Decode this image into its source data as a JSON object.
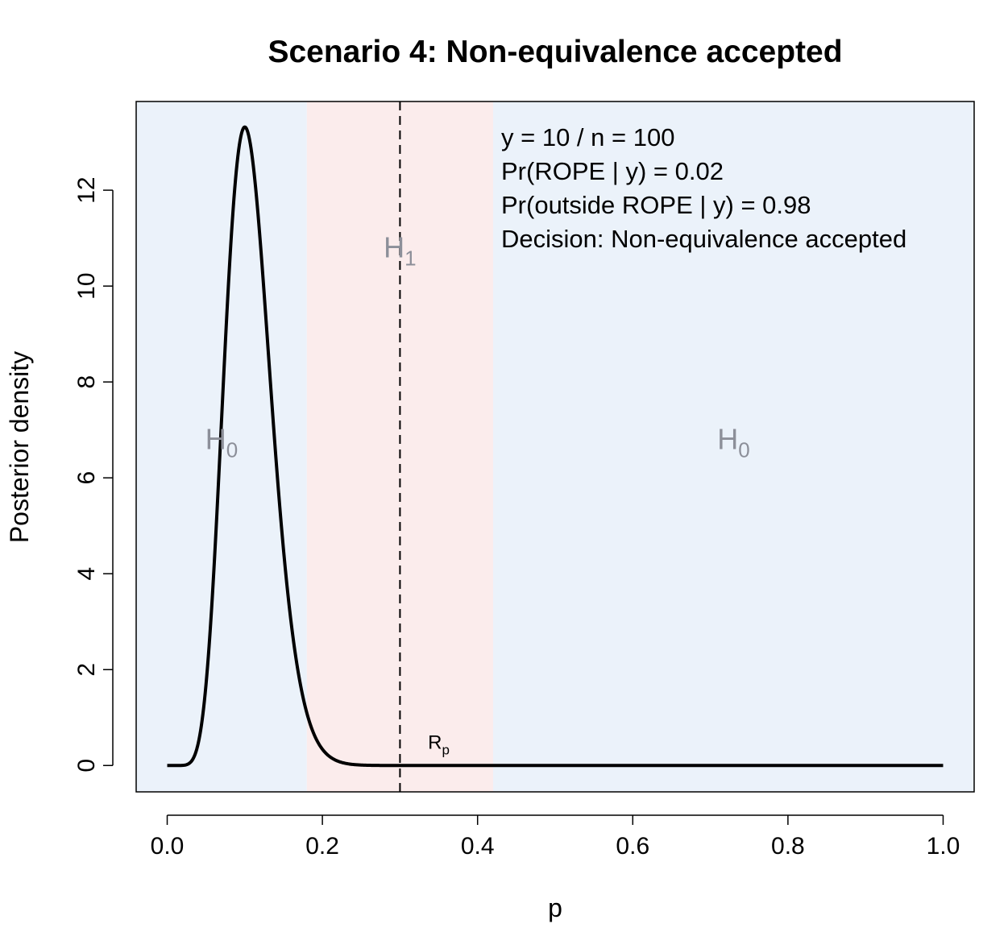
{
  "chart_data": {
    "type": "line",
    "title": "Scenario 4: Non-equivalence accepted",
    "xlabel": "p",
    "ylabel": "Posterior density",
    "xlim": [
      -0.04,
      1.04
    ],
    "ylim": [
      -0.55,
      13.85
    ],
    "x_ticks": [
      0.0,
      0.2,
      0.4,
      0.6,
      0.8,
      1.0
    ],
    "x_tick_labels": [
      "0.0",
      "0.2",
      "0.4",
      "0.6",
      "0.8",
      "1.0"
    ],
    "y_ticks": [
      0,
      2,
      4,
      6,
      8,
      10,
      12
    ],
    "y_tick_labels": [
      "0",
      "2",
      "4",
      "6",
      "8",
      "10",
      "12"
    ],
    "grid": false,
    "rope": {
      "lower": 0.18,
      "upper": 0.42,
      "null_value": 0.3
    },
    "colors": {
      "outside_rope": "#ebf2fa",
      "rope": "#fbecec",
      "curve": "#000000",
      "region_label": "#8c8f99"
    },
    "region_labels": [
      {
        "main": "H",
        "sub": "0",
        "x": 0.07,
        "y": 6.6
      },
      {
        "main": "H",
        "sub": "1",
        "x": 0.3,
        "y": 10.6
      },
      {
        "main": "H",
        "sub": "0",
        "x": 0.73,
        "y": 6.6
      }
    ],
    "rope_label": {
      "main": "R",
      "sub": "p",
      "x": 0.35,
      "y": 0.35
    },
    "annotations": [
      "y = 10 / n = 100",
      "Pr(ROPE | y) = 0.02",
      "Pr(outside ROPE | y) = 0.98",
      "Decision: Non-equivalence accepted"
    ],
    "series": [
      {
        "distribution": "beta",
        "alpha": 11,
        "beta": 91,
        "x_range": [
          0,
          1
        ]
      }
    ]
  }
}
